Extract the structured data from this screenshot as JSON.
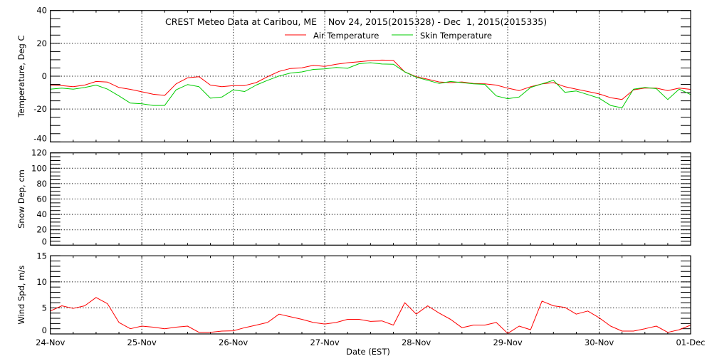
{
  "chart_data": [
    {
      "type": "line",
      "title": "CREST Meteo Data at Caribou, ME    Nov 24, 2015(2015328) - Dec  1, 2015(2015335)",
      "ylabel": "Temperature, Deg C",
      "ylim": [
        -40,
        40
      ],
      "yticks": [
        "40",
        "20",
        "0",
        "-20",
        "-40"
      ],
      "ytick_values": [
        40,
        20,
        0,
        -20,
        -40
      ],
      "grid": true,
      "legend": "top-center",
      "x_start": "2015-11-24 00:00",
      "x_step_hours": 3,
      "series": [
        {
          "name": "Air Temperature",
          "color": "#ff0000",
          "values": [
            -5.4,
            -5.7,
            -6.4,
            -5.4,
            -3.2,
            -3.6,
            -6.9,
            -8.0,
            -9.5,
            -11.0,
            -11.7,
            -4.7,
            -1.0,
            -0.3,
            -5.4,
            -6.4,
            -5.7,
            -5.7,
            -3.9,
            -0.3,
            2.9,
            4.7,
            5.1,
            6.6,
            6.0,
            7.3,
            8.2,
            8.8,
            9.5,
            9.8,
            9.6,
            2.6,
            -0.3,
            -1.8,
            -3.5,
            -3.9,
            -3.5,
            -4.4,
            -4.7,
            -5.4,
            -7.3,
            -8.8,
            -6.4,
            -4.7,
            -3.9,
            -6.4,
            -7.9,
            -9.3,
            -10.8,
            -13.1,
            -14.2,
            -8.3,
            -7.2,
            -7.3,
            -8.8,
            -7.3,
            -8.0
          ]
        },
        {
          "name": "Skin Temperature",
          "color": "#00cc00",
          "values": [
            -7.9,
            -7.3,
            -7.9,
            -6.9,
            -5.4,
            -7.9,
            -12.0,
            -16.4,
            -16.8,
            -17.8,
            -17.8,
            -8.3,
            -5.1,
            -6.4,
            -13.4,
            -12.7,
            -8.3,
            -9.3,
            -5.4,
            -2.5,
            0.1,
            1.9,
            2.6,
            4.1,
            4.4,
            5.3,
            4.8,
            7.6,
            8.2,
            7.4,
            7.3,
            2.6,
            -0.6,
            -2.5,
            -4.4,
            -3.2,
            -3.9,
            -4.7,
            -5.0,
            -12.0,
            -13.7,
            -12.7,
            -6.9,
            -4.7,
            -2.5,
            -9.8,
            -9.0,
            -11.2,
            -13.4,
            -17.8,
            -19.3,
            -7.9,
            -6.9,
            -7.6,
            -14.2,
            -7.9,
            -11.2
          ]
        }
      ]
    },
    {
      "type": "line",
      "ylabel": "Snow Dep, cm",
      "ylim": [
        0,
        120
      ],
      "yticks": [
        "120",
        "100",
        "80",
        "60",
        "40",
        "20",
        "0"
      ],
      "ytick_values": [
        120,
        100,
        80,
        60,
        40,
        20,
        0
      ],
      "grid": true,
      "series": []
    },
    {
      "type": "line",
      "ylabel": "Wind Spd, m/s",
      "ylim": [
        0,
        15
      ],
      "yticks": [
        "15",
        "10",
        "5",
        "0"
      ],
      "ytick_values": [
        15,
        10,
        5,
        0
      ],
      "grid": true,
      "x_start": "2015-11-24 00:00",
      "x_step_hours": 3,
      "xlabel": "Date (EST)",
      "xticks": [
        "24-Nov",
        "25-Nov",
        "26-Nov",
        "27-Nov",
        "28-Nov",
        "29-Nov",
        "30-Nov",
        "01-Dec"
      ],
      "series": [
        {
          "color": "#ff0000",
          "values": [
            4.4,
            5.4,
            4.9,
            5.4,
            7.0,
            5.8,
            2.2,
            1.0,
            1.5,
            1.3,
            1.0,
            1.3,
            1.5,
            0.3,
            0.3,
            0.55,
            0.6,
            1.2,
            1.7,
            2.2,
            3.8,
            3.3,
            2.8,
            2.2,
            1.9,
            2.2,
            2.8,
            2.8,
            2.4,
            2.5,
            1.7,
            6.0,
            3.8,
            5.4,
            4.0,
            2.8,
            1.2,
            1.7,
            1.7,
            2.2,
            0.1,
            1.5,
            0.8,
            6.3,
            5.4,
            5.1,
            3.8,
            4.4,
            3.1,
            1.5,
            0.55,
            0.55,
            1.0,
            1.5,
            0.3,
            0.8,
            1.7
          ]
        }
      ]
    }
  ]
}
